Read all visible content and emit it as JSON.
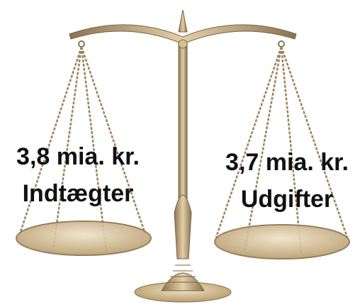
{
  "left": {
    "amount": "3,8 mia. kr.",
    "label": "Indtægter"
  },
  "right": {
    "amount": "3,7 mia. kr.",
    "label": "Udgifter"
  }
}
